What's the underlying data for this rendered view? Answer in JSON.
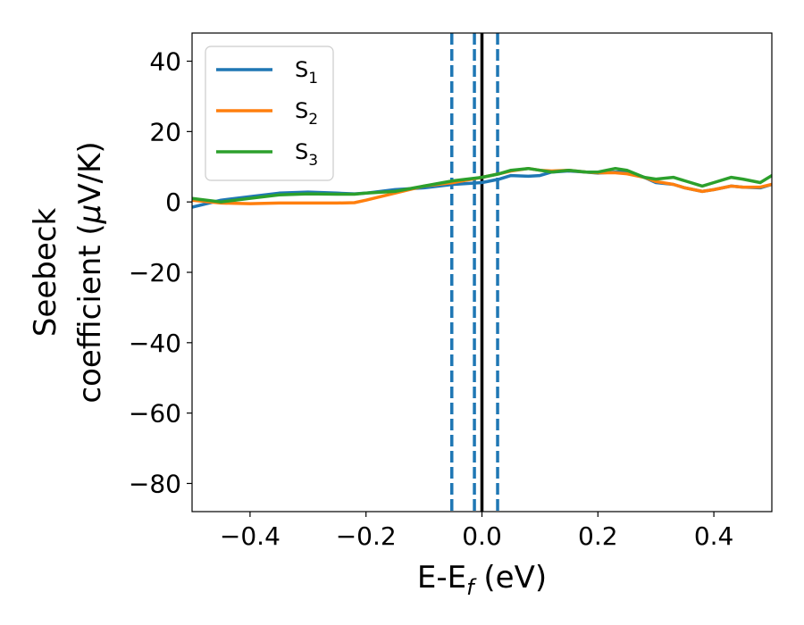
{
  "chart_data": {
    "type": "line",
    "xlabel": {
      "main": "E-E",
      "sub": "f",
      "tail": " (eV)"
    },
    "ylabel": {
      "line1": "Seebeck",
      "line2_pre": "coefficient  (",
      "mu": "μ",
      "line2_post": "V/K)"
    },
    "xlim": [
      -0.5,
      0.5
    ],
    "ylim": [
      -88,
      48
    ],
    "xticks": [
      -0.4,
      -0.2,
      0.0,
      0.2,
      0.4
    ],
    "xtick_labels": [
      "−0.4",
      "−0.2",
      "0.0",
      "0.2",
      "0.4"
    ],
    "yticks": [
      40,
      20,
      0,
      -20,
      -40,
      -60,
      -80
    ],
    "ytick_labels": [
      "40",
      "20",
      "0",
      "−20",
      "−40",
      "−60",
      "−80"
    ],
    "legend_position": "top-left",
    "grid": false,
    "vlines": [
      {
        "x": 0.0,
        "style": "solid",
        "color": "#000000"
      },
      {
        "x": -0.052,
        "style": "dashed",
        "color": "#1f77b4"
      },
      {
        "x": -0.013,
        "style": "dashed",
        "color": "#1f77b4"
      },
      {
        "x": 0.027,
        "style": "dashed",
        "color": "#1f77b4"
      }
    ],
    "series": [
      {
        "name": "S",
        "sub": "1",
        "color": "#1f77b4",
        "x": [
          -0.5,
          -0.45,
          -0.4,
          -0.35,
          -0.3,
          -0.25,
          -0.22,
          -0.2,
          -0.15,
          -0.1,
          -0.05,
          0.0,
          0.03,
          0.05,
          0.08,
          0.1,
          0.12,
          0.15,
          0.18,
          0.2,
          0.23,
          0.25,
          0.28,
          0.3,
          0.33,
          0.35,
          0.38,
          0.4,
          0.43,
          0.45,
          0.48,
          0.5
        ],
        "y": [
          -1.5,
          0.5,
          1.5,
          2.5,
          2.8,
          2.5,
          2.3,
          2.5,
          3.5,
          4.0,
          5.0,
          5.5,
          6.5,
          7.5,
          7.3,
          7.5,
          8.5,
          8.8,
          8.5,
          8.2,
          8.5,
          8.5,
          7.0,
          5.5,
          5.0,
          4.0,
          3.0,
          3.5,
          4.5,
          4.2,
          4.0,
          5.0
        ]
      },
      {
        "name": "S",
        "sub": "2",
        "color": "#ff7f0e",
        "x": [
          -0.5,
          -0.45,
          -0.4,
          -0.35,
          -0.3,
          -0.25,
          -0.22,
          -0.2,
          -0.15,
          -0.1,
          -0.05,
          0.0,
          0.03,
          0.05,
          0.08,
          0.1,
          0.12,
          0.15,
          0.18,
          0.2,
          0.23,
          0.25,
          0.28,
          0.3,
          0.33,
          0.35,
          0.38,
          0.4,
          0.43,
          0.45,
          0.48,
          0.5
        ],
        "y": [
          0.5,
          -0.3,
          -0.5,
          -0.3,
          -0.3,
          -0.3,
          -0.2,
          0.5,
          2.5,
          4.5,
          5.5,
          7.0,
          8.0,
          8.8,
          9.5,
          9.0,
          8.8,
          9.0,
          8.5,
          8.3,
          8.3,
          8.0,
          7.0,
          5.8,
          5.0,
          4.0,
          3.0,
          3.5,
          4.5,
          4.2,
          4.2,
          5.0
        ]
      },
      {
        "name": "S",
        "sub": "3",
        "color": "#2ca02c",
        "x": [
          -0.5,
          -0.45,
          -0.4,
          -0.35,
          -0.3,
          -0.25,
          -0.22,
          -0.2,
          -0.15,
          -0.1,
          -0.05,
          0.0,
          0.03,
          0.05,
          0.08,
          0.1,
          0.12,
          0.15,
          0.18,
          0.2,
          0.23,
          0.25,
          0.28,
          0.3,
          0.33,
          0.35,
          0.38,
          0.4,
          0.43,
          0.45,
          0.48,
          0.5
        ],
        "y": [
          1.0,
          0.0,
          1.0,
          2.0,
          2.3,
          2.2,
          2.2,
          2.5,
          3.0,
          4.5,
          6.0,
          7.0,
          8.0,
          9.0,
          9.5,
          9.0,
          8.5,
          9.0,
          8.5,
          8.5,
          9.5,
          9.0,
          7.0,
          6.5,
          7.0,
          6.0,
          4.5,
          5.5,
          7.0,
          6.5,
          5.5,
          7.5
        ]
      }
    ]
  }
}
